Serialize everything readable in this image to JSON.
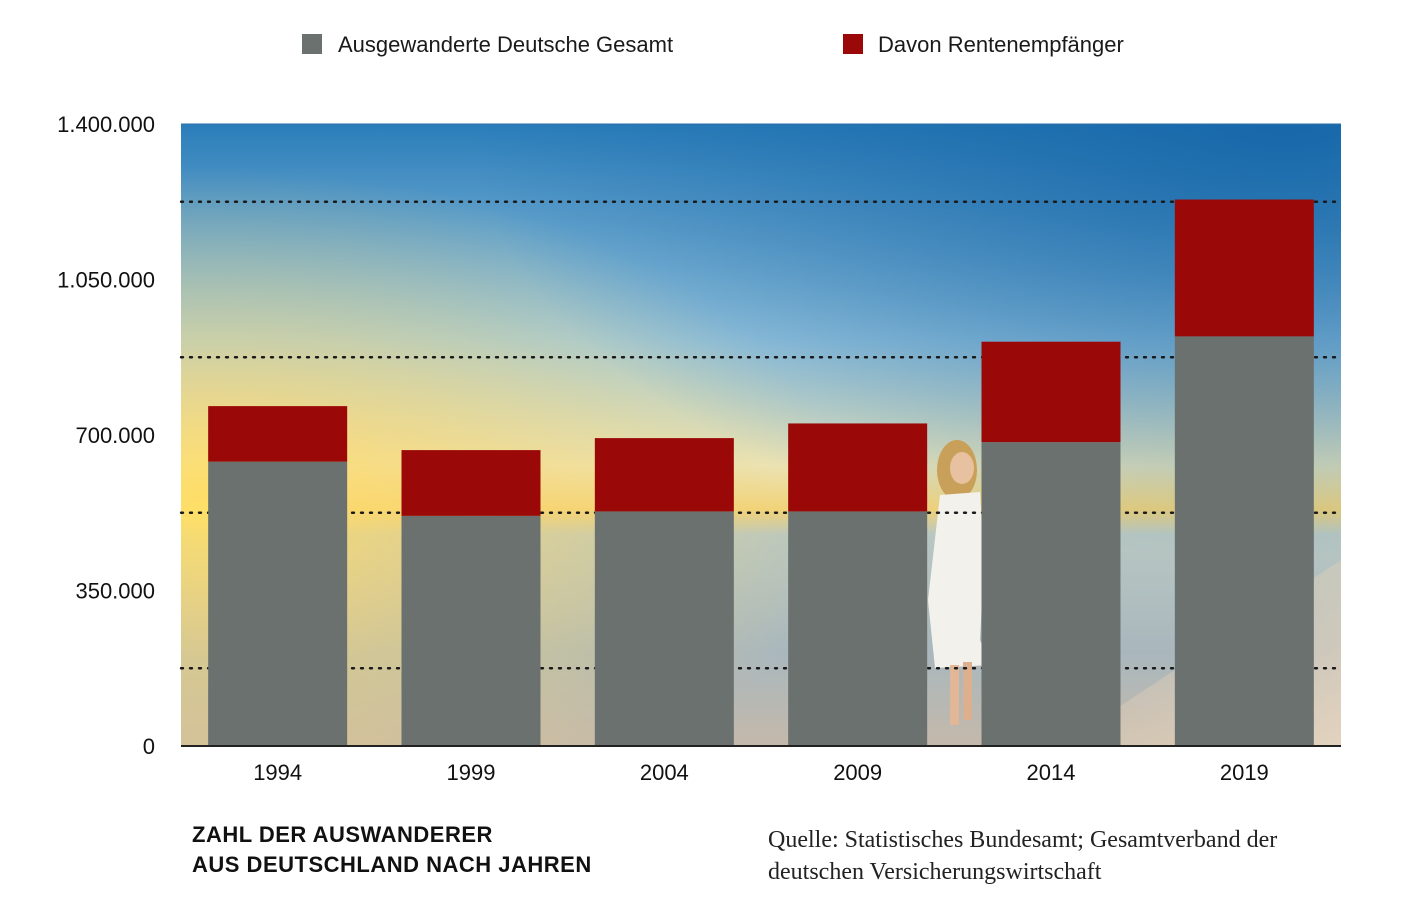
{
  "caption": {
    "line1": "ZAHL DER AUSWANDERER",
    "line2": "AUS DEUTSCHLAND NACH JAHREN"
  },
  "source": {
    "line1": "Quelle: Statistisches Bundesamt; Gesamtverband der",
    "line2": "deutschen Versicherungswirtschaft"
  },
  "colors": {
    "total": "#6b716f",
    "pension": "#9a0808",
    "sky_top": "#1f73b2",
    "sun": "#f6d14a"
  },
  "chart_data": {
    "type": "bar",
    "stacked": true,
    "categories": [
      "1994",
      "1999",
      "2004",
      "2009",
      "2014",
      "2019"
    ],
    "series": [
      {
        "name": "Ausgewanderte Deutsche Gesamt",
        "color": "#6b716f",
        "values": [
          640000,
          518000,
          528000,
          528000,
          684000,
          922000
        ]
      },
      {
        "name": "Davon Rentenempfänger",
        "color": "#9a0808",
        "values": [
          125000,
          148000,
          165000,
          198000,
          226000,
          308000
        ]
      }
    ],
    "y_ticks": [
      "0",
      "350.000",
      "700.000",
      "1.050.000",
      "1.400.000"
    ],
    "y_tick_values": [
      0,
      350000,
      700000,
      1050000,
      1400000
    ],
    "ylim": [
      0,
      1400000
    ],
    "grid": true,
    "grid_style": "dotted",
    "legend_position": "top",
    "background": "beach photo with woman in white dress"
  }
}
